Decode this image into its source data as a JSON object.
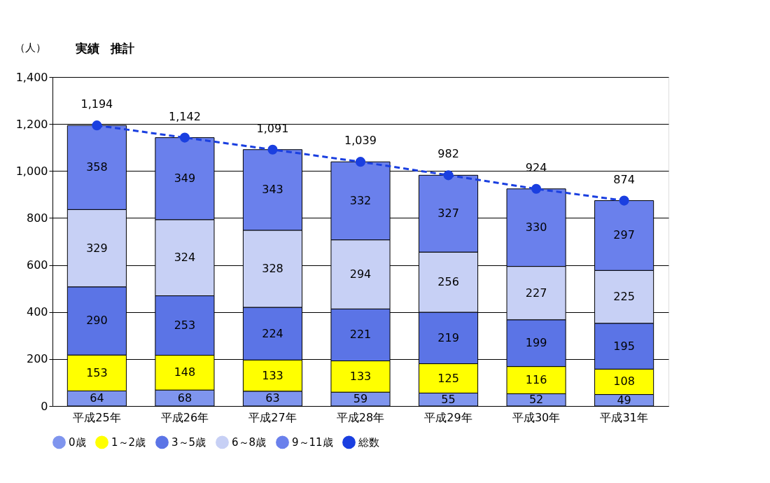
{
  "chart_data": {
    "type": "bar",
    "stacked": true,
    "ylabel": "（人）",
    "categories": [
      "平成25年",
      "平成26年",
      "平成27年",
      "平成28年",
      "平成29年",
      "平成30年",
      "平成31年"
    ],
    "series": [
      {
        "name": "0歳",
        "color": "#7f95ee",
        "values": [
          64,
          68,
          63,
          59,
          55,
          52,
          49
        ]
      },
      {
        "name": "1～2歳",
        "color": "#ffff00",
        "values": [
          153,
          148,
          133,
          133,
          125,
          116,
          108
        ]
      },
      {
        "name": "3～5歳",
        "color": "#5b74e6",
        "values": [
          290,
          253,
          224,
          221,
          219,
          199,
          195
        ]
      },
      {
        "name": "6～8歳",
        "color": "#c7d0f5",
        "values": [
          329,
          324,
          328,
          294,
          256,
          227,
          225
        ]
      },
      {
        "name": "9～11歳",
        "color": "#6a80ec",
        "values": [
          358,
          349,
          343,
          332,
          327,
          330,
          297
        ]
      },
      {
        "name": "総数",
        "type": "line",
        "color": "#1a3fe0",
        "marker": "circle",
        "line_style": "dashed",
        "values": [
          1194,
          1142,
          1091,
          1039,
          982,
          924,
          874
        ],
        "value_labels": [
          "1,194",
          "1,142",
          "1,091",
          "1,039",
          "982",
          "924",
          "874"
        ]
      }
    ],
    "ylim": [
      0,
      1400
    ],
    "yticks": [
      0,
      200,
      400,
      600,
      800,
      {
        "value": 1000,
        "label": "1,000"
      },
      {
        "value": 1200,
        "label": "1,200"
      },
      {
        "value": 1400,
        "label": "1,400"
      }
    ],
    "grid": "y",
    "legend": "bottom",
    "data_labels": true,
    "annotations": [
      "実績",
      "推計"
    ]
  }
}
